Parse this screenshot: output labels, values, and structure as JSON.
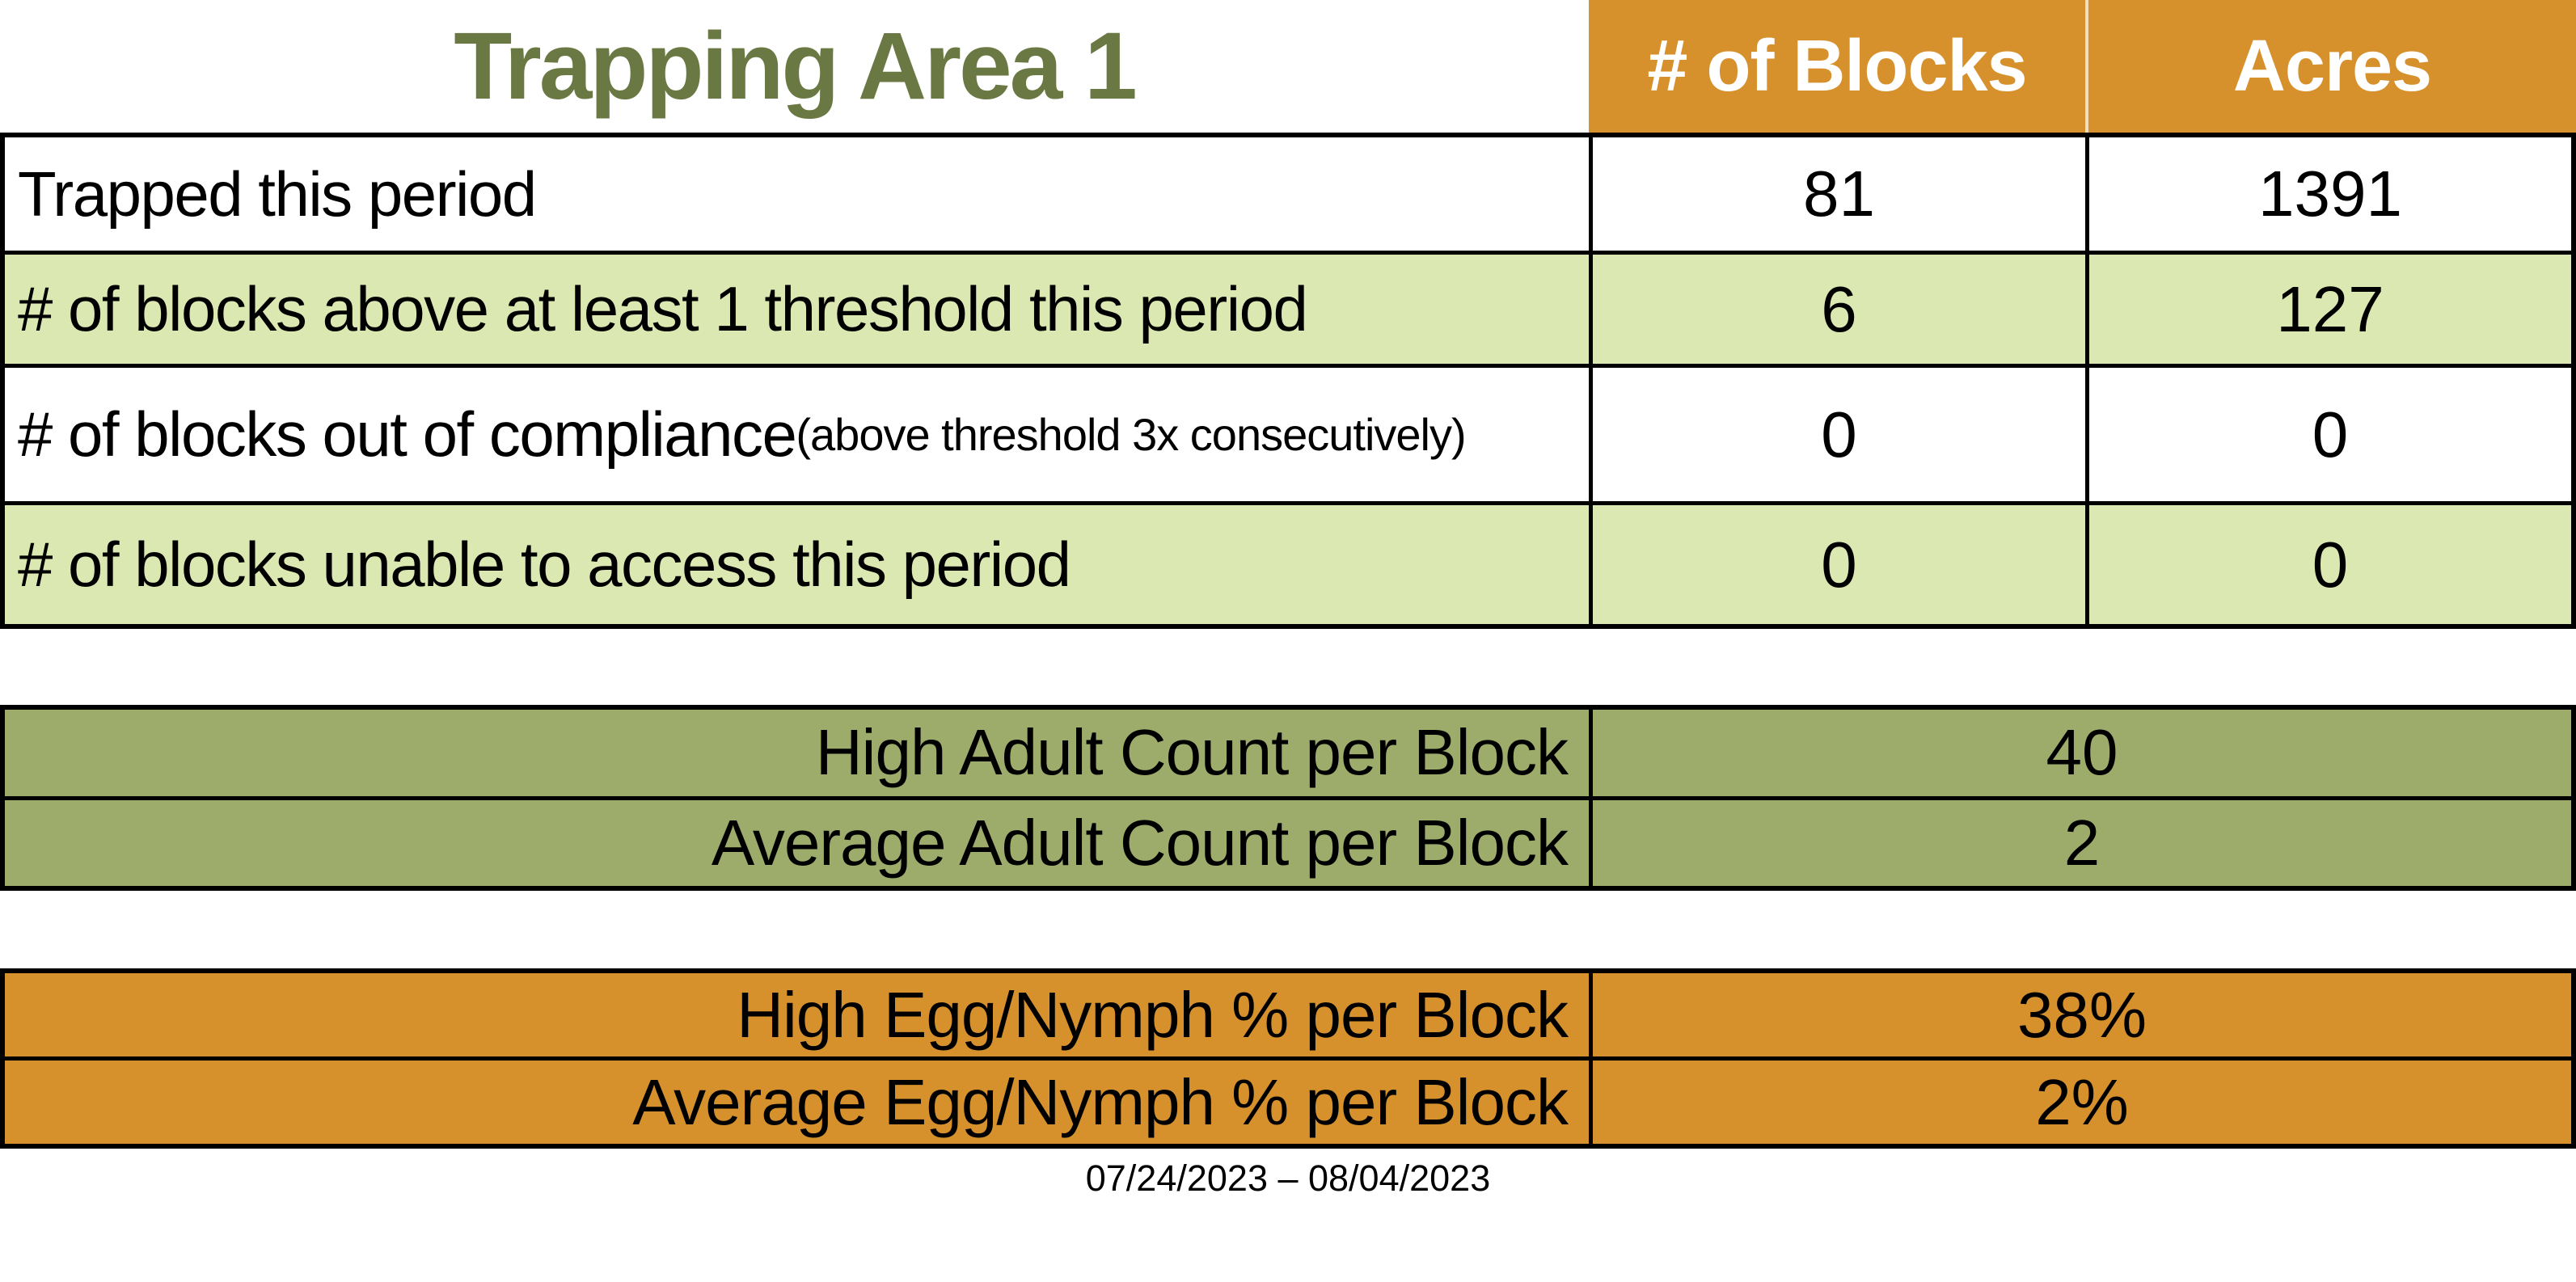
{
  "chart_data": {
    "type": "table",
    "title": "Trapping Area 1",
    "columns": [
      "",
      "# of Blocks",
      "Acres"
    ],
    "rows": [
      [
        "Trapped this period",
        81,
        1391
      ],
      [
        "# of blocks above at least 1 threshold this period",
        6,
        127
      ],
      [
        "# of blocks out of compliance (above threshold 3x consecutively)",
        0,
        0
      ],
      [
        "# of blocks unable to access this period",
        0,
        0
      ]
    ],
    "adult_summary": [
      {
        "label": "High Adult Count per Block",
        "value": 40
      },
      {
        "label": "Average Adult Count per Block",
        "value": 2
      }
    ],
    "egg_nymph_summary": [
      {
        "label": "High Egg/Nymph % per Block",
        "value": "38%"
      },
      {
        "label": "Average Egg/Nymph % per Block",
        "value": "2%"
      }
    ],
    "footnote": "07/24/2023 – 08/04/2023"
  },
  "title": "Trapping Area 1",
  "table": {
    "col_blocks": "# of Blocks",
    "col_acres": "Acres",
    "rows": [
      {
        "label": "Trapped this period",
        "note": "",
        "blocks": "81",
        "acres": "1391"
      },
      {
        "label": "# of blocks above at least 1 threshold this period",
        "note": "",
        "blocks": "6",
        "acres": "127"
      },
      {
        "label": "# of blocks out of compliance",
        "note": " (above threshold 3x consecutively)",
        "blocks": "0",
        "acres": "0"
      },
      {
        "label": "# of blocks unable to access this period",
        "note": "",
        "blocks": "0",
        "acres": "0"
      }
    ]
  },
  "adult": {
    "rows": [
      {
        "label": "High Adult Count per Block",
        "value": "40"
      },
      {
        "label": "Average Adult Count per Block",
        "value": "2"
      }
    ]
  },
  "egg": {
    "rows": [
      {
        "label": "High Egg/Nymph % per Block",
        "value": "38%"
      },
      {
        "label": "Average Egg/Nymph % per Block",
        "value": "2%"
      }
    ]
  },
  "date_range": "07/24/2023 – 08/04/2023",
  "colors": {
    "orange": "#D6912D",
    "light_green": "#DCE8B2",
    "olive": "#9DAB6B",
    "title_green": "#6A7943",
    "border": "#000000"
  }
}
